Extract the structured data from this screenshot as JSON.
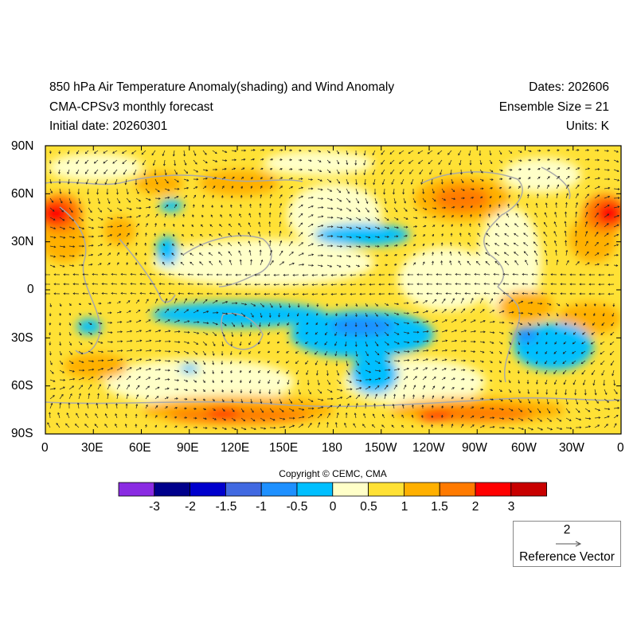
{
  "header": {
    "title_line1": "850 hPa Air Temperature Anomaly(shading) and Wind Anomaly",
    "title_line2": "CMA-CPSv3 monthly forecast",
    "title_line3": "Initial date: 20260301",
    "dates": "Dates: 202606",
    "ensemble": "Ensemble Size = 21",
    "units": "Units: K"
  },
  "axes": {
    "lat_labels": [
      "90N",
      "60N",
      "30N",
      "0",
      "30S",
      "60S",
      "90S"
    ],
    "lon_labels": [
      "0",
      "30E",
      "60E",
      "90E",
      "120E",
      "150E",
      "180",
      "150W",
      "120W",
      "90W",
      "60W",
      "30W",
      "0"
    ]
  },
  "colorbar": {
    "colors": [
      "#8a2be2",
      "#00008b",
      "#0000cd",
      "#4169e1",
      "#1e90ff",
      "#00bfff",
      "#ffffc8",
      "#ffe135",
      "#ffb000",
      "#ff7a00",
      "#ff0000",
      "#c80000"
    ],
    "labels": [
      "-3",
      "-2",
      "-1.5",
      "-1",
      "-0.5",
      "0",
      "0.5",
      "1",
      "1.5",
      "2",
      "3"
    ]
  },
  "copyright": "Copyright © CEMC, CMA",
  "reference_vector": {
    "magnitude": "2",
    "label": "Reference Vector"
  },
  "map_content": {
    "field": "850 hPa air temperature anomaly (K)",
    "domain_lon": [
      0,
      360
    ],
    "domain_lat": [
      -90,
      90
    ],
    "notable_features": [
      {
        "lon": 10,
        "lat": 48,
        "category": "3"
      },
      {
        "lon": 355,
        "lat": 48,
        "category": "3"
      },
      {
        "lon": 120,
        "lat": -77,
        "category": "2"
      },
      {
        "lon": 250,
        "lat": -77,
        "category": "2"
      },
      {
        "lon": 125,
        "lat": -25,
        "category": "-0.5"
      },
      {
        "lon": 205,
        "lat": 35,
        "category": "-0.5"
      },
      {
        "lon": 300,
        "lat": -40,
        "category": "-0.5"
      },
      {
        "lon": 215,
        "lat": -40,
        "category": "-0.5"
      }
    ]
  }
}
